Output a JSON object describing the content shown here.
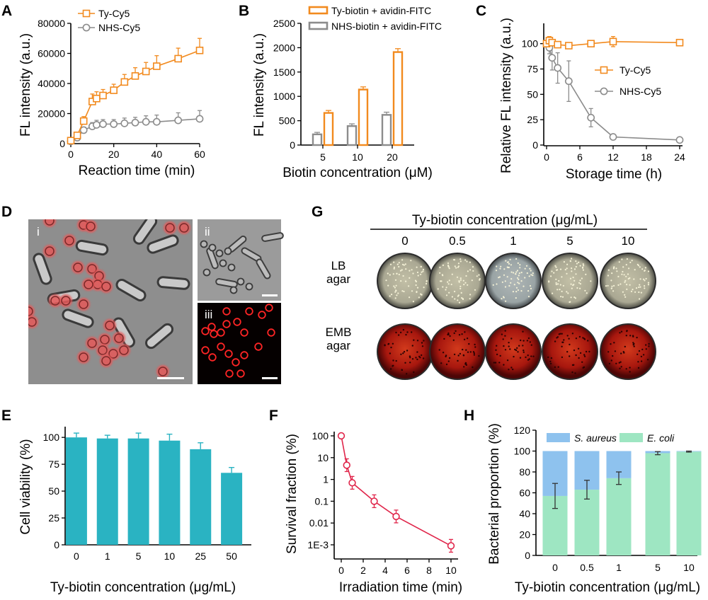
{
  "panels": {
    "A": "A",
    "B": "B",
    "C": "C",
    "D": "D",
    "E": "E",
    "F": "F",
    "G": "G",
    "H": "H"
  },
  "chart_data": [
    {
      "panel": "A",
      "type": "line",
      "xlabel": "Reaction time (min)",
      "ylabel": "FL intensity (a.u.)",
      "xlim": [
        0,
        60
      ],
      "ylim": [
        0,
        80000
      ],
      "xticks": [
        0,
        20,
        40,
        60
      ],
      "yticks": [
        0,
        20000,
        40000,
        60000,
        80000
      ],
      "legend": "top-left",
      "series": [
        {
          "name": "Ty-Cy5",
          "color": "#f28a1e",
          "marker": "square",
          "x": [
            0,
            3,
            6,
            10,
            12,
            15,
            20,
            25,
            30,
            35,
            40,
            50,
            60
          ],
          "y": [
            2000,
            5500,
            15000,
            28000,
            30000,
            32000,
            35500,
            41000,
            45000,
            48000,
            51500,
            56500,
            62000
          ],
          "err": [
            800,
            1500,
            3000,
            5000,
            4500,
            4000,
            4000,
            5000,
            5500,
            6000,
            7000,
            7000,
            8000
          ]
        },
        {
          "name": "NHS-Cy5",
          "color": "#8c8c8c",
          "marker": "circle",
          "x": [
            0,
            3,
            6,
            10,
            12,
            15,
            20,
            25,
            30,
            35,
            40,
            50,
            60
          ],
          "y": [
            1500,
            4000,
            9000,
            11500,
            12500,
            13000,
            13000,
            13500,
            14000,
            14500,
            14500,
            15500,
            16500
          ],
          "err": [
            500,
            1500,
            2000,
            2500,
            3000,
            3000,
            3000,
            3500,
            3500,
            4000,
            4500,
            5000,
            5500
          ]
        }
      ]
    },
    {
      "panel": "B",
      "type": "bar",
      "xlabel": "Biotin concentration (μM)",
      "ylabel": "FL intensity (a.u.)",
      "categories": [
        "5",
        "10",
        "20"
      ],
      "ylim": [
        0,
        2500
      ],
      "yticks": [
        0,
        500,
        1000,
        1500,
        2000,
        2500
      ],
      "legend": "top",
      "series": [
        {
          "name": "NHS-biotin + avidin-FITC",
          "color": "#8c8c8c",
          "values": [
            220,
            390,
            620
          ],
          "err": [
            40,
            45,
            55
          ]
        },
        {
          "name": "Ty-biotin + avidin-FITC",
          "color": "#f28a1e",
          "values": [
            660,
            1140,
            1910
          ],
          "err": [
            50,
            55,
            70
          ]
        }
      ]
    },
    {
      "panel": "C",
      "type": "line",
      "xlabel": "Storage time (h)",
      "ylabel": "Relative FL intensity (a.u.)",
      "xlim": [
        0,
        24
      ],
      "ylim": [
        0,
        120
      ],
      "xticks": [
        0,
        6,
        12,
        18,
        24
      ],
      "yticks": [
        0,
        25,
        50,
        75,
        100
      ],
      "legend": "right",
      "series": [
        {
          "name": "Ty-Cy5",
          "color": "#f28a1e",
          "marker": "square",
          "x": [
            0,
            0.5,
            1,
            2,
            4,
            8,
            12,
            24
          ],
          "y": [
            100,
            103,
            101,
            99,
            98,
            100,
            102,
            101
          ],
          "err": [
            2,
            4,
            3,
            3,
            2,
            2,
            5,
            3
          ]
        },
        {
          "name": "NHS-Cy5",
          "color": "#8c8c8c",
          "marker": "circle",
          "x": [
            0,
            0.5,
            1,
            2,
            4,
            8,
            12,
            24
          ],
          "y": [
            100,
            96,
            86,
            76,
            63,
            27,
            8,
            5
          ],
          "err": [
            2,
            6,
            12,
            15,
            20,
            9,
            2,
            1
          ]
        }
      ]
    },
    {
      "panel": "E",
      "type": "bar",
      "xlabel": "Ty-biotin concentration (μg/mL)",
      "ylabel": "Cell viability (%)",
      "categories": [
        "0",
        "1",
        "5",
        "10",
        "25",
        "50"
      ],
      "values": [
        100,
        99,
        99,
        97,
        89,
        67
      ],
      "err": [
        4,
        3,
        5,
        6,
        6,
        5
      ],
      "ylim": [
        0,
        110
      ],
      "yticks": [
        0,
        25,
        50,
        75,
        100
      ],
      "color": "#2ab3c2"
    },
    {
      "panel": "F",
      "type": "line",
      "scale": "log",
      "xlabel": "Irradiation time (min)",
      "ylabel": "Survival fraction (%)",
      "xlim": [
        0,
        10
      ],
      "xticks": [
        0,
        2,
        4,
        6,
        8,
        10
      ],
      "ytick_labels": [
        "100",
        "10",
        "1",
        "0.1",
        "0.01",
        "1E-3"
      ],
      "color": "#e0254a",
      "x": [
        0,
        0.5,
        1,
        3,
        5,
        10
      ],
      "y": [
        100,
        4.5,
        0.7,
        0.1,
        0.02,
        0.0009
      ]
    },
    {
      "panel": "H",
      "type": "bar",
      "stacked": true,
      "xlabel": "Ty-biotin concentration (μg/mL)",
      "ylabel": "Bacterial proportion (%)",
      "categories": [
        "0",
        "0.5",
        "1",
        "5",
        "10"
      ],
      "ylim": [
        0,
        120
      ],
      "yticks": [
        0,
        20,
        40,
        60,
        80,
        100,
        120
      ],
      "legend": "top",
      "series": [
        {
          "name": "E. coli",
          "color": "#9ee6c2",
          "values": [
            57,
            63,
            74,
            98,
            99.5
          ],
          "err": [
            12,
            9,
            6,
            1.5,
            0.5
          ]
        },
        {
          "name": "S. aureus",
          "color": "#8ec2ee",
          "values": [
            43,
            37,
            26,
            2,
            0.5
          ]
        }
      ]
    }
  ],
  "micrographs": {
    "i": "i",
    "ii": "ii",
    "iii": "iii"
  },
  "plates": {
    "header": "Ty-biotin concentration (μg/mL)",
    "concentrations": [
      "0",
      "0.5",
      "1",
      "5",
      "10"
    ],
    "rows": [
      {
        "label1": "LB",
        "label2": "agar",
        "kind": "lb"
      },
      {
        "label1": "EMB",
        "label2": "agar",
        "kind": "emb"
      }
    ]
  }
}
